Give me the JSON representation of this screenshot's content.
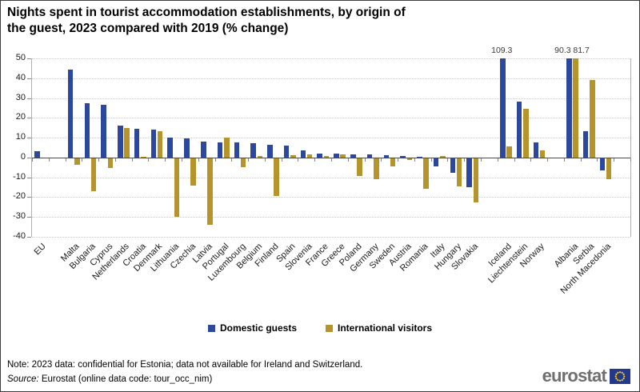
{
  "title": {
    "line1": "Nights spent in tourist accommodation establishments, by origin of",
    "line2": "the guest, 2023 compared with 2019 (% change)"
  },
  "footer": {
    "note": "Note: 2023 data: confidential for Estonia; data not available for Ireland and Switzerland.",
    "source_label": "Source:",
    "source_text": " Eurostat (online data code: tour_occ_nim)"
  },
  "branding": {
    "logo_text": "eurostat",
    "flag_blue": "#24388e",
    "star_yellow": "#ffcc00"
  },
  "chart_data": {
    "type": "bar",
    "title": "Nights spent in tourist accommodation establishments, by origin of the guest, 2023 compared with 2019 (% change)",
    "ylabel": "% change",
    "ylim": [
      -40,
      50
    ],
    "yticks": [
      50,
      40,
      30,
      20,
      10,
      0,
      -10,
      -20,
      -30,
      -40
    ],
    "grid": "horizontal-dotted",
    "legend_position": "bottom-center",
    "categories": [
      "EU",
      "Malta",
      "Bulgaria",
      "Cyprus",
      "Netherlands",
      "Croatia",
      "Denmark",
      "Lithuania",
      "Czechia",
      "Latvia",
      "Portugal",
      "Luxembourg",
      "Belgium",
      "Finland",
      "Spain",
      "Slovenia",
      "France",
      "Greece",
      "Poland",
      "Germany",
      "Sweden",
      "Austria",
      "Romania",
      "Italy",
      "Hungary",
      "Slovakia",
      "Iceland",
      "Liechtenstein",
      "Norway",
      "Albania",
      "Serbia",
      "North Macedonia"
    ],
    "gap_after_indices": [
      0,
      25,
      28
    ],
    "series": [
      {
        "name": "Domestic guests",
        "color": "#2c479e",
        "values": [
          3.1,
          44.3,
          27.2,
          26.7,
          16.3,
          14.4,
          14.0,
          10.0,
          9.5,
          8.2,
          7.8,
          7.7,
          7.4,
          6.3,
          6.2,
          3.7,
          2.1,
          1.8,
          1.7,
          1.5,
          1.1,
          0.8,
          0.5,
          -3.8,
          -7.3,
          -14.3,
          109.3,
          28.3,
          7.7,
          90.3,
          13.3,
          -6.1
        ]
      },
      {
        "name": "International visitors",
        "color": "#b5942c",
        "values": [
          0.0,
          -2.9,
          -16.5,
          -4.6,
          14.7,
          0.4,
          13.3,
          -29.5,
          -13.6,
          -33.3,
          10.2,
          -4.1,
          0.9,
          -18.8,
          1.2,
          1.7,
          0.7,
          1.7,
          -8.8,
          -10.3,
          -4.0,
          -0.5,
          -15.3,
          0.9,
          -13.9,
          -21.9,
          5.8,
          24.7,
          3.6,
          81.7,
          39.3,
          -10.5
        ]
      }
    ],
    "annotations": [
      {
        "category": "Iceland",
        "series": "Domestic guests",
        "text": "109.3",
        "dx": 0
      },
      {
        "category": "Albania",
        "series": "Domestic guests",
        "text": "90.3",
        "dx": -7
      },
      {
        "category": "Albania",
        "series": "International visitors",
        "text": "81.7",
        "dx": 8
      }
    ]
  }
}
